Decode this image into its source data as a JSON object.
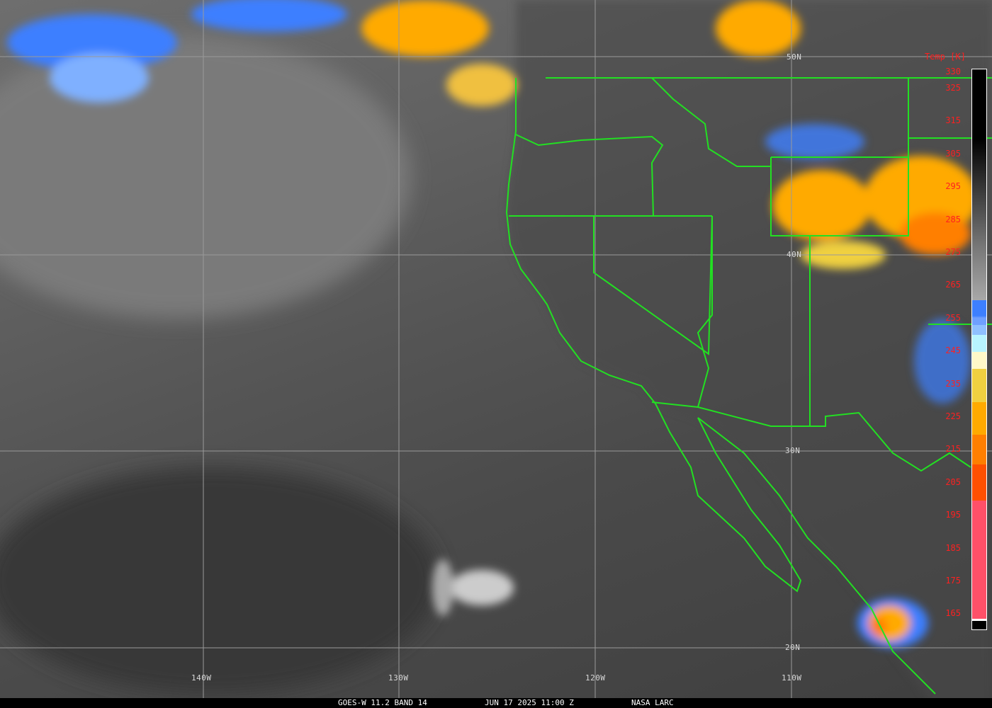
{
  "caption": {
    "product": "GOES-W 11.2 BAND 14",
    "datetime": "JUN 17 2025 11:00 Z",
    "source": "NASA LARC"
  },
  "grid_labels": {
    "lat": [
      "50N",
      "40N",
      "30N",
      "20N"
    ],
    "lon": [
      "140W",
      "130W",
      "120W",
      "110W"
    ]
  },
  "colorbar": {
    "title": "Temp [K]",
    "ticks": [
      "330",
      "325",
      "315",
      "305",
      "295",
      "285",
      "275",
      "265",
      "255",
      "245",
      "235",
      "225",
      "215",
      "205",
      "195",
      "185",
      "175",
      "165"
    ],
    "range_k": [
      165,
      330
    ]
  },
  "colors": {
    "borders": "#22e022",
    "labels": "#ff2020",
    "cloud_blue": "#3d7fff",
    "cloud_orange": "#ffaa00",
    "cloud_yellow": "#f0d040"
  }
}
